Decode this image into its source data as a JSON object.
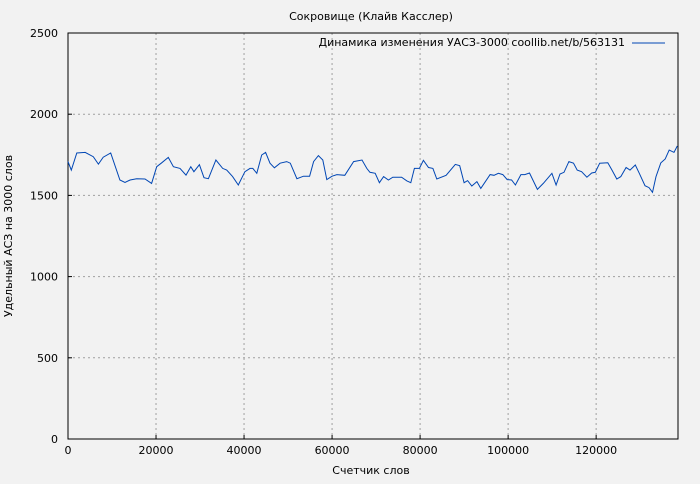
{
  "chart_data": {
    "type": "line",
    "title": "Сокровище (Клайв Касслер)",
    "xlabel": "Счетчик слов",
    "ylabel": "Удельный АСЗ на 3000 слов",
    "xlim": [
      0,
      138600
    ],
    "ylim": [
      0,
      2500
    ],
    "xticks": [
      0,
      20000,
      40000,
      60000,
      80000,
      100000,
      120000
    ],
    "yticks": [
      0,
      500,
      1000,
      1500,
      2000,
      2500
    ],
    "grid": true,
    "legend_position": "top-right",
    "colors": {
      "line": "#0046b4",
      "grid": "#a0a0a0",
      "background": "#f2f2f2"
    },
    "series": [
      {
        "name": "Динамика изменения УАСЗ-3000 coollib.net/b/563131",
        "x": [
          0,
          750,
          2000,
          3900,
          5750,
          6900,
          8000,
          9700,
          11800,
          12950,
          14100,
          15600,
          17500,
          19000,
          20150,
          21300,
          22800,
          23950,
          25450,
          26800,
          27900,
          28600,
          29850,
          30900,
          31900,
          33600,
          35150,
          36050,
          37400,
          38700,
          40200,
          41350,
          42000,
          42900,
          44000,
          44900,
          45900,
          46900,
          48200,
          49700,
          50500,
          52000,
          53500,
          54900,
          55800,
          56900,
          57900,
          58800,
          60000,
          61100,
          62900,
          64900,
          66800,
          67900,
          68600,
          69800,
          70750,
          71700,
          72800,
          73800,
          75800,
          77000,
          77900,
          78700,
          79850,
          80750,
          81900,
          82900,
          83800,
          85900,
          88000,
          89000,
          90000,
          90800,
          91750,
          92900,
          93800,
          95900,
          96800,
          97800,
          98800,
          99800,
          100800,
          101650,
          102900,
          103800,
          104850,
          106650,
          108000,
          109950,
          110900,
          111800,
          112700,
          113800,
          114850,
          115700,
          116700,
          117900,
          119000,
          119800,
          120800,
          122650,
          123600,
          124700,
          125600,
          126800,
          127700,
          128900,
          129800,
          131100,
          132000,
          132800,
          133600,
          134700,
          135700,
          136600,
          137700,
          138450
        ],
        "y": [
          1708,
          1656,
          1761,
          1765,
          1738,
          1693,
          1735,
          1761,
          1595,
          1580,
          1595,
          1603,
          1601,
          1574,
          1677,
          1701,
          1734,
          1677,
          1666,
          1625,
          1677,
          1646,
          1689,
          1609,
          1603,
          1718,
          1666,
          1656,
          1616,
          1564,
          1646,
          1666,
          1666,
          1636,
          1749,
          1765,
          1698,
          1670,
          1698,
          1708,
          1698,
          1603,
          1618,
          1618,
          1708,
          1745,
          1718,
          1597,
          1618,
          1628,
          1624,
          1708,
          1718,
          1666,
          1642,
          1636,
          1578,
          1616,
          1595,
          1612,
          1612,
          1589,
          1578,
          1666,
          1666,
          1716,
          1672,
          1666,
          1601,
          1624,
          1691,
          1683,
          1578,
          1591,
          1558,
          1585,
          1543,
          1628,
          1624,
          1636,
          1628,
          1597,
          1595,
          1564,
          1628,
          1628,
          1638,
          1537,
          1574,
          1636,
          1564,
          1632,
          1642,
          1708,
          1698,
          1656,
          1646,
          1612,
          1638,
          1642,
          1698,
          1701,
          1656,
          1601,
          1616,
          1672,
          1656,
          1687,
          1636,
          1560,
          1548,
          1519,
          1616,
          1700,
          1724,
          1779,
          1765,
          1804
        ]
      }
    ]
  }
}
